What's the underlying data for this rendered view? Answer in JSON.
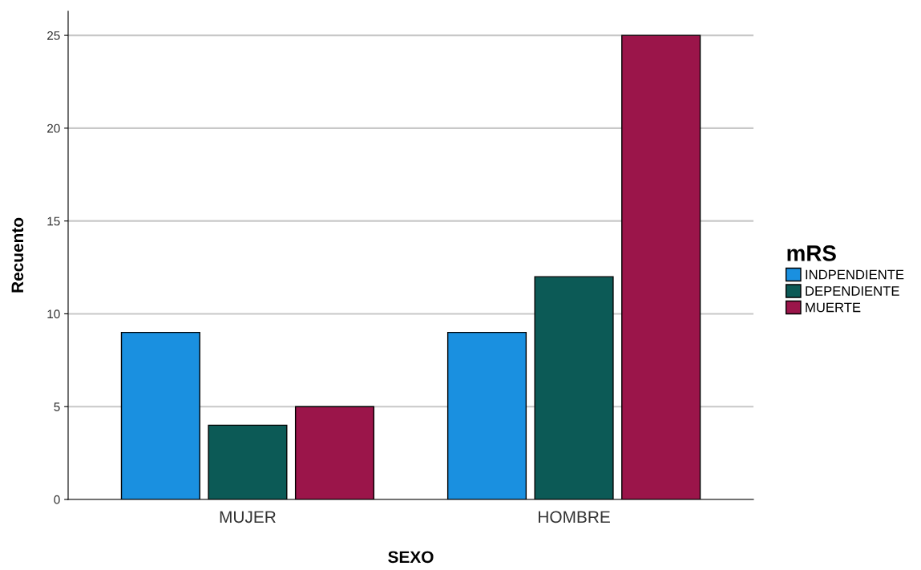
{
  "chart_data": {
    "type": "bar",
    "xlabel": "SEXO",
    "ylabel": "Recuento",
    "legend_title": "mRS",
    "categories": [
      "MUJER",
      "HOMBRE"
    ],
    "series": [
      {
        "name": "INDPENDIENTE",
        "color": "#1a90e0",
        "values": [
          9,
          9
        ]
      },
      {
        "name": "DEPENDIENTE",
        "color": "#0c5a56",
        "values": [
          4,
          12
        ]
      },
      {
        "name": "MUERTE",
        "color": "#9b154a",
        "values": [
          5,
          25
        ]
      }
    ],
    "ylim": [
      0,
      26.3
    ],
    "yticks": [
      0,
      5,
      10,
      15,
      20,
      25
    ],
    "grid": "y",
    "legend": "right"
  }
}
